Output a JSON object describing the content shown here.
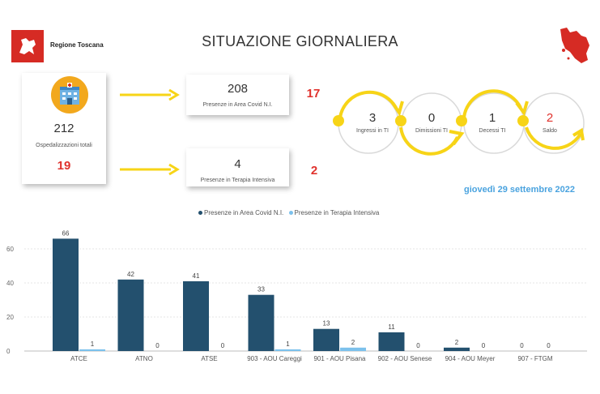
{
  "header": {
    "region_name": "Regione Toscana",
    "title": "SITUAZIONE GIORNALIERA"
  },
  "summary": {
    "total_value": "212",
    "total_label": "Ospedalizzazioni totali",
    "total_change": "19",
    "covid_value": "208",
    "covid_label": "Presenze in Area Covid N.I.",
    "covid_change": "17",
    "ti_value": "4",
    "ti_label": "Presenze in Terapia Intensiva",
    "ti_change": "2"
  },
  "flow": {
    "items": [
      {
        "value": "3",
        "label": "Ingressi in TI"
      },
      {
        "value": "0",
        "label": "Dimissioni TI"
      },
      {
        "value": "1",
        "label": "Decessi TI"
      },
      {
        "value": "2",
        "label": "Saldo"
      }
    ]
  },
  "date": "giovedì 29 settembre 2022",
  "colors": {
    "accent_red": "#e0322d",
    "arrow_yellow": "#f7d417",
    "series_dark": "#23506e",
    "series_light": "#7cc1ec",
    "date_blue": "#4aa3df"
  },
  "chart_data": {
    "type": "bar",
    "categories": [
      "ATCE",
      "ATNO",
      "ATSE",
      "903 - AOU Careggi",
      "901 - AOU Pisana",
      "902 - AOU Senese",
      "904 - AOU Meyer",
      "907 - FTGM"
    ],
    "series": [
      {
        "name": "Presenze in Area Covid N.I.",
        "values": [
          66,
          42,
          41,
          33,
          13,
          11,
          2,
          0
        ]
      },
      {
        "name": "Presenze in Terapia Intensiva",
        "values": [
          1,
          0,
          0,
          1,
          2,
          0,
          0,
          0
        ]
      }
    ],
    "yticks": [
      0,
      20,
      40,
      60
    ],
    "ylim": [
      0,
      70
    ],
    "legend_position": "top-center"
  }
}
